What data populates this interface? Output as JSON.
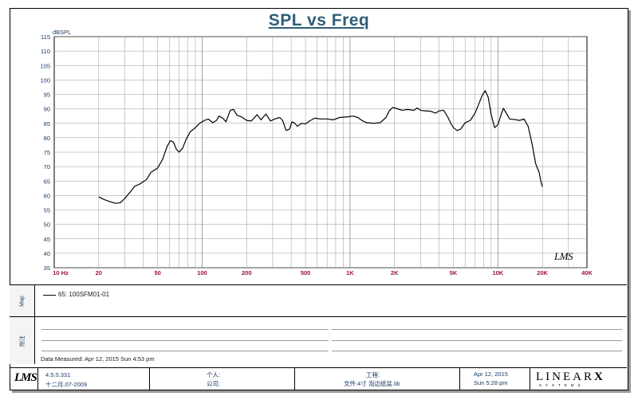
{
  "title": "SPL vs Freq",
  "chart_data": {
    "type": "line",
    "title": "SPL vs Freq",
    "xscale": "log",
    "xlim": [
      10,
      40000
    ],
    "ylim": [
      35,
      115
    ],
    "ylabel": "dBSPL",
    "xlabel": "",
    "grid": true,
    "x_tick_labels": [
      "10  Hz",
      "20",
      "50",
      "100",
      "200",
      "500",
      "1K",
      "2K",
      "5K",
      "10K",
      "20K",
      "40K"
    ],
    "x_tick_values": [
      10,
      20,
      50,
      100,
      200,
      500,
      1000,
      2000,
      5000,
      10000,
      20000,
      40000
    ],
    "y_ticks": [
      35,
      40,
      45,
      50,
      55,
      60,
      65,
      70,
      75,
      80,
      85,
      90,
      95,
      100,
      105,
      110,
      115
    ],
    "series": [
      {
        "name": "65: 100SFM01-01",
        "color": "#000000",
        "points": [
          [
            20,
            59.5
          ],
          [
            22,
            58.5
          ],
          [
            24,
            57.8
          ],
          [
            26,
            57.3
          ],
          [
            28,
            57.5
          ],
          [
            30,
            59
          ],
          [
            33,
            61.5
          ],
          [
            35,
            63.2
          ],
          [
            38,
            64
          ],
          [
            42,
            65.5
          ],
          [
            45,
            68
          ],
          [
            50,
            69.5
          ],
          [
            54,
            72.5
          ],
          [
            58,
            77
          ],
          [
            61,
            79
          ],
          [
            64,
            78.5
          ],
          [
            67,
            76
          ],
          [
            70,
            75
          ],
          [
            74,
            76.5
          ],
          [
            78,
            79.5
          ],
          [
            83,
            82
          ],
          [
            90,
            83.5
          ],
          [
            96,
            85
          ],
          [
            104,
            86
          ],
          [
            110,
            86.5
          ],
          [
            118,
            85.2
          ],
          [
            125,
            86
          ],
          [
            130,
            87.5
          ],
          [
            138,
            86.8
          ],
          [
            145,
            85.5
          ],
          [
            155,
            89.5
          ],
          [
            163,
            89.8
          ],
          [
            172,
            87.8
          ],
          [
            185,
            87.2
          ],
          [
            200,
            86
          ],
          [
            215,
            85.8
          ],
          [
            235,
            88
          ],
          [
            250,
            86.2
          ],
          [
            270,
            88.2
          ],
          [
            290,
            85.8
          ],
          [
            310,
            86.5
          ],
          [
            335,
            87
          ],
          [
            350,
            86
          ],
          [
            370,
            82.5
          ],
          [
            390,
            83
          ],
          [
            405,
            85.5
          ],
          [
            420,
            85.2
          ],
          [
            440,
            84
          ],
          [
            470,
            85
          ],
          [
            500,
            84.8
          ],
          [
            540,
            86
          ],
          [
            580,
            86.8
          ],
          [
            630,
            86.5
          ],
          [
            700,
            86.5
          ],
          [
            770,
            86.2
          ],
          [
            850,
            87
          ],
          [
            950,
            87.2
          ],
          [
            1050,
            87.5
          ],
          [
            1130,
            87
          ],
          [
            1220,
            85.8
          ],
          [
            1300,
            85.2
          ],
          [
            1450,
            85
          ],
          [
            1600,
            85.2
          ],
          [
            1750,
            87
          ],
          [
            1850,
            89.5
          ],
          [
            1950,
            90.5
          ],
          [
            2100,
            90
          ],
          [
            2250,
            89.5
          ],
          [
            2450,
            89.8
          ],
          [
            2700,
            89.5
          ],
          [
            2850,
            90.3
          ],
          [
            3000,
            89.5
          ],
          [
            3200,
            89.3
          ],
          [
            3500,
            89.2
          ],
          [
            3800,
            88.5
          ],
          [
            4000,
            89.3
          ],
          [
            4300,
            89.5
          ],
          [
            4600,
            87
          ],
          [
            4800,
            85
          ],
          [
            5000,
            83.5
          ],
          [
            5300,
            82.5
          ],
          [
            5600,
            83
          ],
          [
            6000,
            85.2
          ],
          [
            6500,
            86
          ],
          [
            7000,
            88.5
          ],
          [
            7400,
            91.5
          ],
          [
            7800,
            94.5
          ],
          [
            8200,
            96.3
          ],
          [
            8600,
            94
          ],
          [
            9000,
            88
          ],
          [
            9500,
            83.5
          ],
          [
            10000,
            84.5
          ],
          [
            10500,
            88
          ],
          [
            10900,
            90.2
          ],
          [
            11400,
            88.5
          ],
          [
            12000,
            86.5
          ],
          [
            13000,
            86.3
          ],
          [
            14000,
            86
          ],
          [
            15000,
            86.5
          ],
          [
            16000,
            84
          ],
          [
            17000,
            78
          ],
          [
            18000,
            71
          ],
          [
            19000,
            68
          ],
          [
            19500,
            65
          ],
          [
            20000,
            63
          ]
        ]
      }
    ],
    "watermark": "LMS"
  },
  "legend": {
    "tab_label": "Map",
    "entry": "65: 100SFM01-01"
  },
  "notes": {
    "tab_label": "附注",
    "date_measured": "Data Measured: Apr 12, 2015  Sun  4:53 pm"
  },
  "footer": {
    "logo": "LMS",
    "version": "4.5.0.331",
    "version_date": "十二月.07-2009",
    "personal_label": "个人:",
    "company_label": "公司:",
    "project_label": "工程:",
    "file_label": "文件:4寸 泡边纸盆.lib",
    "date": "Apr 12, 2015",
    "time": "Sun  5:28 pm",
    "brand_main": "LINEAR",
    "brand_x": "X",
    "brand_sub": "SYSTEMS"
  },
  "colors": {
    "title": "#2e5f78",
    "x_tick_label": "#a0123a",
    "y_tick_label": "#1a3a66",
    "grid": "#9a9a9a",
    "trace": "#000000"
  }
}
